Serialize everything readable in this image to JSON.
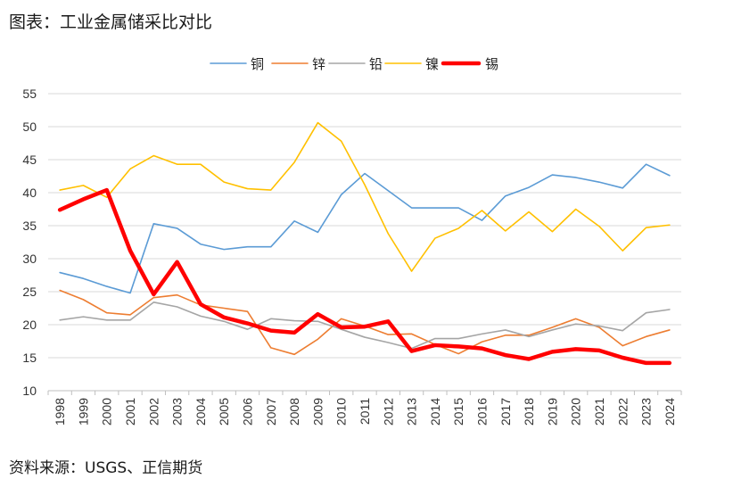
{
  "page": {
    "title": "图表：工业金属储采比对比",
    "source": "资料来源：USGS、正信期货"
  },
  "chart_data": {
    "type": "line",
    "title": "",
    "xlabel": "",
    "ylabel": "",
    "ylim": [
      10,
      55
    ],
    "yticks": [
      10,
      15,
      20,
      25,
      30,
      35,
      40,
      45,
      50,
      55
    ],
    "grid": "horizontal",
    "legend": "top-center",
    "x": [
      "1998",
      "1999",
      "2000",
      "2001",
      "2002",
      "2003",
      "2004",
      "2005",
      "2006",
      "2007",
      "2008",
      "2009",
      "2010",
      "2011",
      "2012",
      "2013",
      "2014",
      "2015",
      "2016",
      "2017",
      "2018",
      "2019",
      "2020",
      "2021",
      "2022",
      "2023",
      "2024"
    ],
    "series": [
      {
        "name": "铜",
        "color": "#5b9bd5",
        "bold": false,
        "values": [
          27.9,
          27.0,
          25.8,
          24.8,
          35.3,
          34.6,
          32.2,
          31.4,
          31.8,
          31.8,
          35.7,
          34.0,
          39.7,
          42.9,
          40.3,
          37.7,
          37.7,
          37.7,
          35.8,
          39.5,
          40.8,
          42.7,
          42.3,
          41.6,
          40.7,
          44.3,
          42.6
        ]
      },
      {
        "name": "锌",
        "color": "#ed7d31",
        "bold": false,
        "values": [
          25.2,
          23.8,
          21.8,
          21.5,
          24.1,
          24.5,
          23.0,
          22.5,
          22.0,
          16.5,
          15.5,
          17.8,
          20.9,
          19.8,
          18.5,
          18.6,
          17.0,
          15.6,
          17.4,
          18.4,
          18.4,
          19.6,
          20.9,
          19.6,
          16.8,
          18.2,
          19.2
        ]
      },
      {
        "name": "铅",
        "color": "#a5a5a5",
        "bold": false,
        "values": [
          20.7,
          21.2,
          20.7,
          20.7,
          23.4,
          22.7,
          21.3,
          20.5,
          19.3,
          20.9,
          20.6,
          20.5,
          19.3,
          18.1,
          17.3,
          16.4,
          17.9,
          17.9,
          18.6,
          19.2,
          18.2,
          19.2,
          20.1,
          19.8,
          19.1,
          21.8,
          22.3
        ]
      },
      {
        "name": "镍",
        "color": "#ffc000",
        "bold": false,
        "values": [
          40.4,
          41.1,
          39.3,
          43.6,
          45.6,
          44.3,
          44.3,
          41.6,
          40.6,
          40.4,
          44.6,
          50.6,
          47.8,
          41.2,
          33.8,
          28.1,
          33.1,
          34.6,
          37.3,
          34.2,
          37.1,
          34.1,
          37.5,
          34.9,
          31.2,
          34.7,
          35.1
        ]
      },
      {
        "name": "锡",
        "color": "#ff0000",
        "bold": true,
        "values": [
          37.4,
          39.0,
          40.4,
          31.2,
          24.6,
          29.5,
          23.1,
          21.1,
          20.2,
          19.1,
          18.8,
          21.6,
          19.6,
          19.7,
          20.5,
          16.0,
          16.9,
          16.7,
          16.4,
          15.4,
          14.8,
          15.9,
          16.3,
          16.1,
          15.0,
          14.2,
          14.2
        ]
      }
    ]
  }
}
